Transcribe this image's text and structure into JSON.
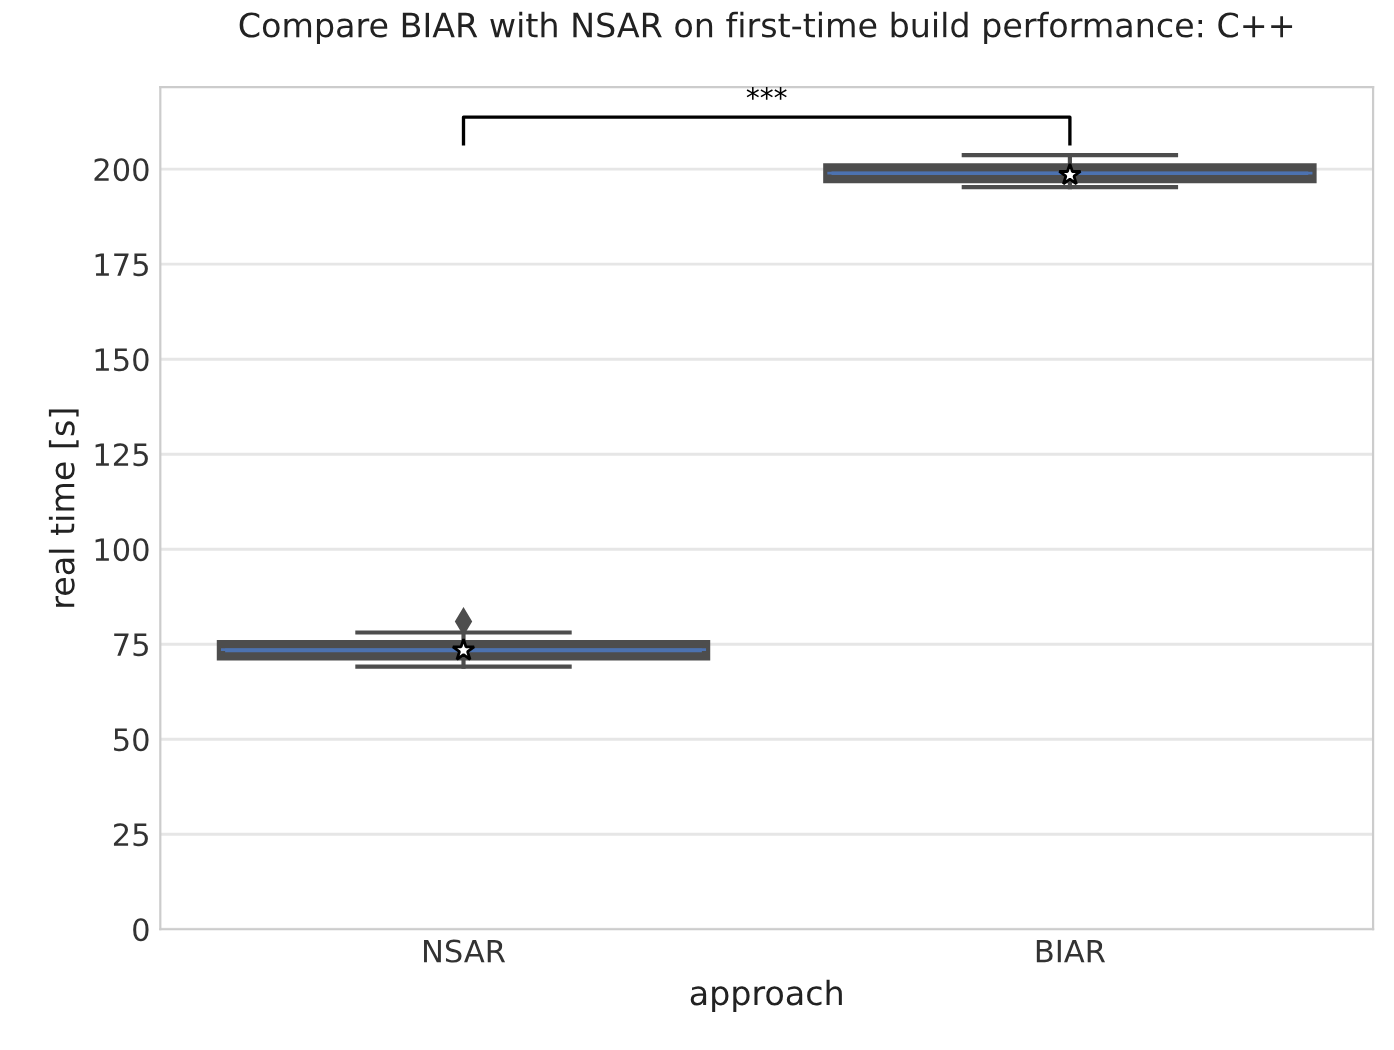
{
  "chart_data": {
    "type": "box",
    "title": "Compare BIAR with NSAR on first-time build performance: C++",
    "xlabel": "approach",
    "ylabel": "real time [s]",
    "categories": [
      "NSAR",
      "BIAR"
    ],
    "boxes": [
      {
        "low": 69.1,
        "q1": 71.8,
        "median": 73.6,
        "q3": 75.0,
        "high": 78.1,
        "mean": 73.4,
        "outliers": [
          81
        ]
      },
      {
        "low": 195.3,
        "q1": 197.4,
        "median": 199.0,
        "q3": 200.5,
        "high": 203.7,
        "mean": 198.5
      }
    ],
    "color": "#4c72b0",
    "ylim": [
      0,
      221.6
    ],
    "yticks": [
      0,
      25,
      50,
      75,
      100,
      125,
      150,
      175,
      200
    ],
    "grid": "y",
    "annotations": [
      "***"
    ]
  }
}
